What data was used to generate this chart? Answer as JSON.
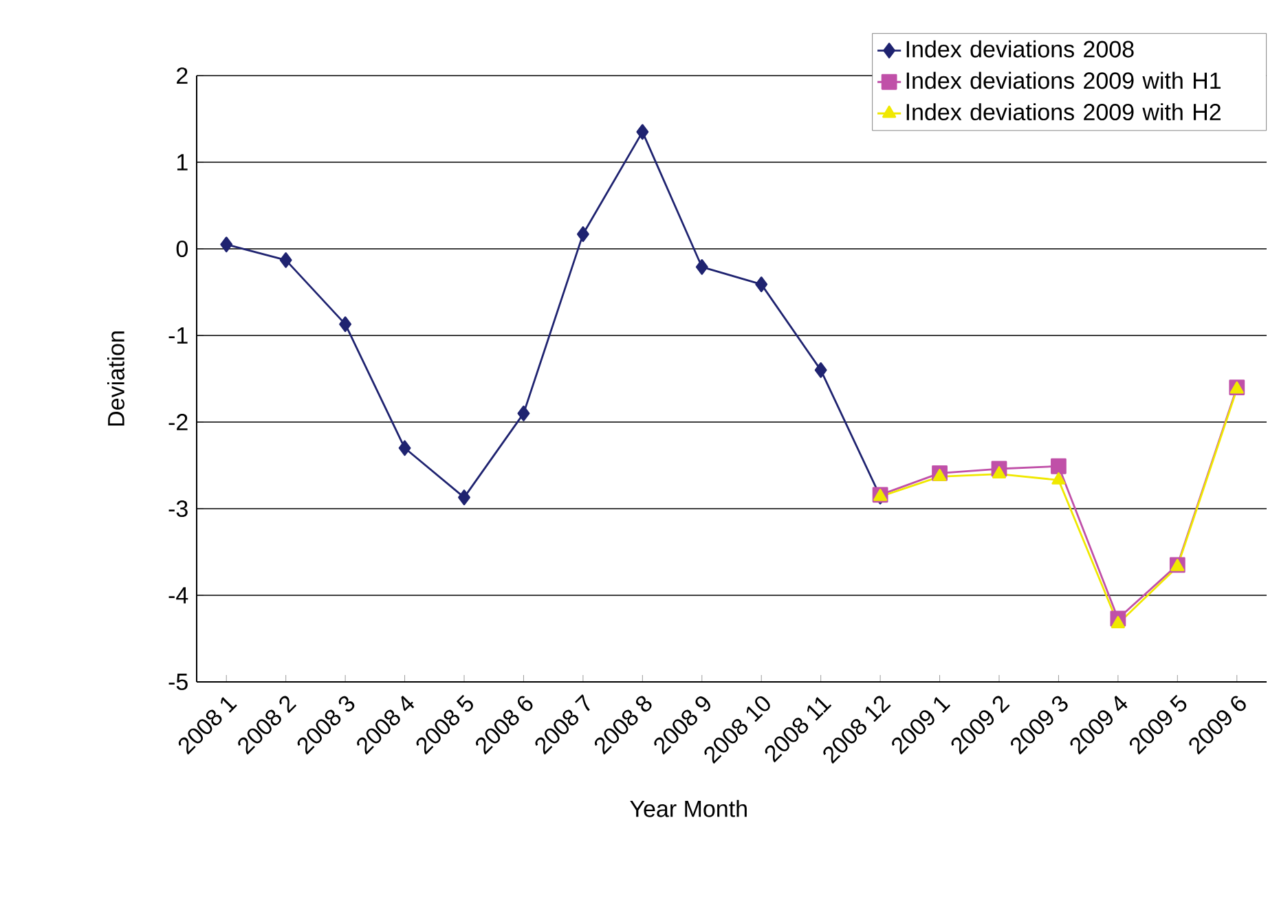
{
  "chart_data": {
    "type": "line",
    "xlabel": "Year  Month",
    "ylabel": "Deviation",
    "categories": [
      "2008 1",
      "2008 2",
      "2008 3",
      "2008 4",
      "2008 5",
      "2008 6",
      "2008 7",
      "2008 8",
      "2008 9",
      "2008 10",
      "2008 11",
      "2008 12",
      "2009 1",
      "2009 2",
      "2009 3",
      "2009 4",
      "2009 5",
      "2009 6"
    ],
    "series": [
      {
        "name": "Index deviations 2008",
        "color": "#1f2370",
        "marker": "diamond",
        "values": [
          0.05,
          -0.13,
          -0.87,
          -2.3,
          -2.87,
          -1.9,
          0.17,
          1.35,
          -0.21,
          -0.41,
          -1.4,
          -2.86,
          null,
          null,
          null,
          null,
          null,
          null
        ]
      },
      {
        "name": "Index deviations 2009 with H1",
        "color": "#c050a8",
        "marker": "square",
        "values": [
          null,
          null,
          null,
          null,
          null,
          null,
          null,
          null,
          null,
          null,
          null,
          -2.84,
          -2.59,
          -2.54,
          -2.51,
          -4.27,
          -3.65,
          -1.6
        ]
      },
      {
        "name": "Index deviations 2009 with H2",
        "color": "#f0e800",
        "marker": "triangle",
        "values": [
          null,
          null,
          null,
          null,
          null,
          null,
          null,
          null,
          null,
          null,
          null,
          -2.86,
          -2.63,
          -2.6,
          -2.67,
          -4.33,
          -3.67,
          -1.62
        ]
      }
    ],
    "ylim": [
      -5,
      2
    ],
    "yticks": [
      -5,
      -4,
      -3,
      -2,
      -1,
      0,
      1,
      2
    ],
    "grid": "y",
    "legend": "top right"
  }
}
